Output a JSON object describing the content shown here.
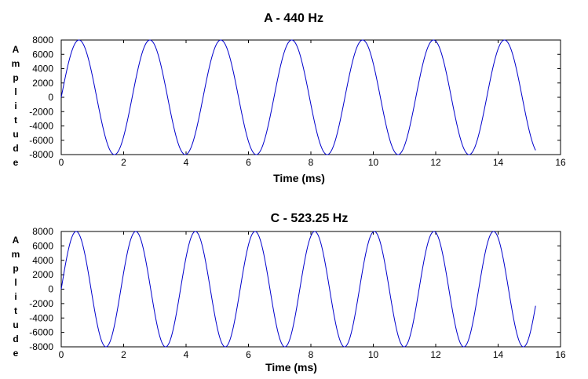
{
  "colors": {
    "series": "#0000cc",
    "axis": "#000000",
    "background": "#ffffff"
  },
  "chart_data": [
    {
      "type": "line",
      "title": "A - 440 Hz",
      "xlabel": "Time (ms)",
      "ylabel": "Amplitude",
      "xlim": [
        0,
        16
      ],
      "ylim": [
        -8000,
        8000
      ],
      "xticks": [
        0,
        2,
        4,
        6,
        8,
        10,
        12,
        14,
        16
      ],
      "yticks": [
        8000,
        6000,
        4000,
        2000,
        0,
        -2000,
        -4000,
        -6000,
        -8000
      ],
      "grid": false,
      "series": [
        {
          "function": "sine",
          "frequency_hz": 440,
          "amplitude": 8000,
          "t_start_ms": 0,
          "t_end_ms": 15.2
        }
      ]
    },
    {
      "type": "line",
      "title": "C - 523.25 Hz",
      "xlabel": "Time (ms)",
      "ylabel": "Amplitude",
      "xlim": [
        0,
        16
      ],
      "ylim": [
        -8000,
        8000
      ],
      "xticks": [
        0,
        2,
        4,
        6,
        8,
        10,
        12,
        14,
        16
      ],
      "yticks": [
        8000,
        6000,
        4000,
        2000,
        0,
        -2000,
        -4000,
        -6000,
        -8000
      ],
      "grid": false,
      "series": [
        {
          "function": "sine",
          "frequency_hz": 523.25,
          "amplitude": 8000,
          "t_start_ms": 0,
          "t_end_ms": 15.2
        }
      ]
    }
  ]
}
